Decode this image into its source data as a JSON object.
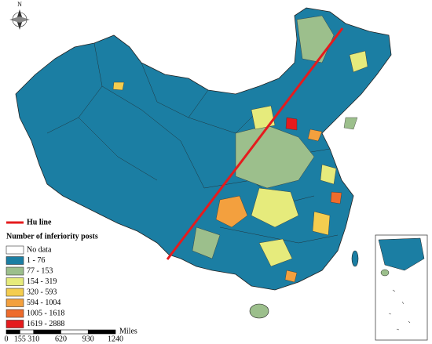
{
  "compass": "N",
  "legend": {
    "line_label": "Hu line",
    "title": "Number of inferiority posts",
    "classes": [
      {
        "label": "No data",
        "color": "#ffffff"
      },
      {
        "label": "1 - 76",
        "color": "#1b7ea3"
      },
      {
        "label": "77 - 153",
        "color": "#9cbf8c"
      },
      {
        "label": "154 - 319",
        "color": "#e6eb7c"
      },
      {
        "label": "320 - 593",
        "color": "#f4cd4f"
      },
      {
        "label": "594 - 1004",
        "color": "#f3a03e"
      },
      {
        "label": "1005 - 1618",
        "color": "#ee6c2c"
      },
      {
        "label": "1619 - 2888",
        "color": "#e51b1d"
      }
    ]
  },
  "scale_bar": {
    "ticks": [
      0,
      155,
      310,
      620,
      930,
      1240
    ],
    "unit": "Miles"
  }
}
